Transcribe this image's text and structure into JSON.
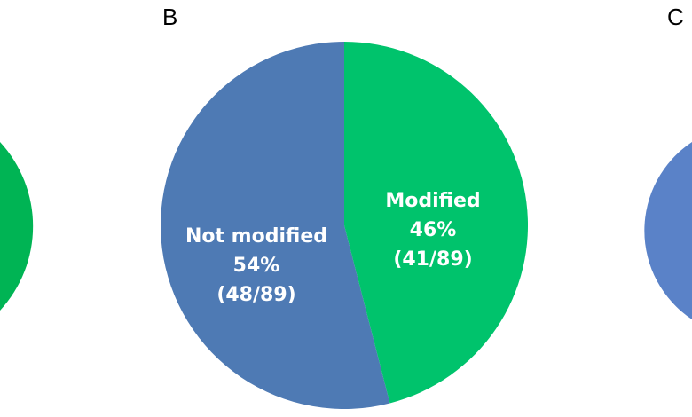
{
  "panels": [
    {
      "label": "B"
    },
    {
      "label": "C"
    }
  ],
  "colors": {
    "blue": "#4e7ab4",
    "green": "#00c36c",
    "left_green": "#00b454",
    "right_blue": "#5a82c8"
  },
  "chart_data": {
    "type": "pie",
    "categories": [
      "Not modified",
      "Modified"
    ],
    "values": [
      54,
      46
    ],
    "counts": [
      "(48/89)",
      "(41/89)"
    ],
    "percent_labels": [
      "54%",
      "46%"
    ],
    "total": 89,
    "title": ""
  }
}
